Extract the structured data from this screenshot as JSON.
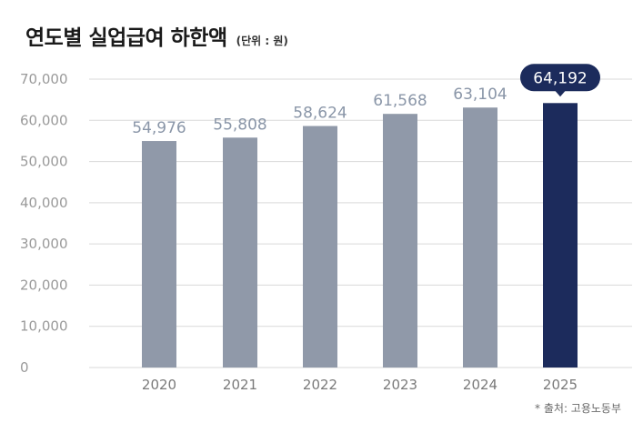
{
  "header": {
    "title": "연도별 실업급여 하한액",
    "unit": "(단위 : 원)"
  },
  "footer": {
    "source": "* 출처: 고용노동부"
  },
  "colors": {
    "bar": "#9099a9",
    "highlight_bar": "#1c2b5c",
    "grid": "#d9d9d9"
  },
  "chart_data": {
    "type": "bar",
    "title": "연도별 실업급여 하한액",
    "subtitle": "(단위 : 원)",
    "categories": [
      "2020",
      "2021",
      "2022",
      "2023",
      "2024",
      "2025"
    ],
    "values": [
      54976,
      55808,
      58624,
      61568,
      63104,
      64192
    ],
    "value_labels": [
      "54,976",
      "55,808",
      "58,624",
      "61,568",
      "63,104",
      "64,192"
    ],
    "highlight_index": 5,
    "yticks": [
      "0",
      "10,000",
      "20,000",
      "30,000",
      "40,000",
      "50,000",
      "60,000",
      "70,000"
    ],
    "ylim": [
      0,
      70000
    ],
    "grid": true,
    "xlabel": "",
    "ylabel": ""
  }
}
